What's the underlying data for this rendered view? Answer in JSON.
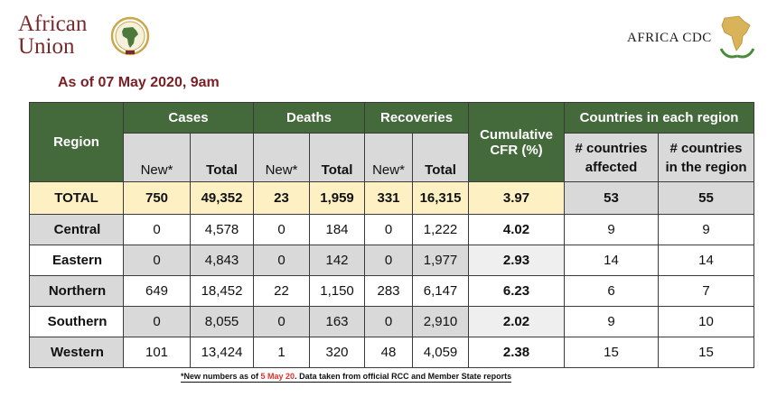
{
  "logos": {
    "au_line1": "African",
    "au_line2": "Union",
    "cdc_text": "AFRICA CDC"
  },
  "date_line": "As of 07 May 2020, 9am",
  "table": {
    "headers": {
      "region": "Region",
      "cases": "Cases",
      "deaths": "Deaths",
      "recoveries": "Recoveries",
      "cfr_line1": "Cumulative",
      "cfr_line2": "CFR (%)",
      "countries": "Countries in each region",
      "new": "New*",
      "total": "Total",
      "affected_line1": "# countries",
      "affected_line2": "affected",
      "in_region_line1": "# countries",
      "in_region_line2": "in the region"
    },
    "total_row": {
      "label": "TOTAL",
      "cases_new": "750",
      "cases_total": "49,352",
      "deaths_new": "23",
      "deaths_total": "1,959",
      "rec_new": "331",
      "rec_total": "16,315",
      "cfr": "3.97",
      "affected": "53",
      "in_region": "55"
    },
    "rows": [
      {
        "region": "Central",
        "cases_new": "0",
        "cases_total": "4,578",
        "deaths_new": "0",
        "deaths_total": "184",
        "rec_new": "0",
        "rec_total": "1,222",
        "cfr": "4.02",
        "affected": "9",
        "in_region": "9"
      },
      {
        "region": "Eastern",
        "cases_new": "0",
        "cases_total": "4,843",
        "deaths_new": "0",
        "deaths_total": "142",
        "rec_new": "0",
        "rec_total": "1,977",
        "cfr": "2.93",
        "affected": "14",
        "in_region": "14"
      },
      {
        "region": "Northern",
        "cases_new": "649",
        "cases_total": "18,452",
        "deaths_new": "22",
        "deaths_total": "1,150",
        "rec_new": "283",
        "rec_total": "6,147",
        "cfr": "6.23",
        "affected": "6",
        "in_region": "7"
      },
      {
        "region": "Southern",
        "cases_new": "0",
        "cases_total": "8,055",
        "deaths_new": "0",
        "deaths_total": "163",
        "rec_new": "0",
        "rec_total": "2,910",
        "cfr": "2.02",
        "affected": "9",
        "in_region": "10"
      },
      {
        "region": "Western",
        "cases_new": "101",
        "cases_total": "13,424",
        "deaths_new": "1",
        "deaths_total": "320",
        "rec_new": "48",
        "rec_total": "4,059",
        "cfr": "2.38",
        "affected": "15",
        "in_region": "15"
      }
    ]
  },
  "footnote": {
    "prefix": "*New numbers as of ",
    "highlight": "5 May 20",
    "suffix": ". Data taken from official RCC and Member State reports"
  },
  "colors": {
    "header_green": "#44693a",
    "total_row_yellow": "#fdf0c3",
    "grey_cell": "#d9d9d9",
    "date_red": "#7a1f24",
    "au_maroon": "#7a2a2e",
    "footnote_red": "#e0302a"
  }
}
